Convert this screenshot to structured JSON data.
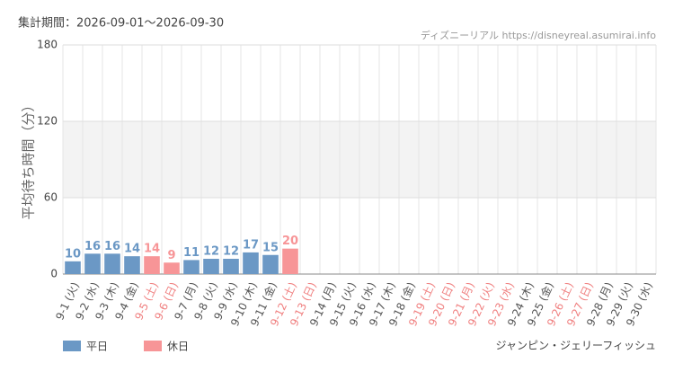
{
  "chart_data": {
    "type": "bar",
    "period": "集計期間：2026-09-01～2026-09-30",
    "source": "ディズニーリアル https://disneyreal.asumirai.info",
    "attraction": "ジャンピン・ジェリーフィッシュ",
    "y_label": "平均待ち時間（分）",
    "categories": [
      "9-1 (火)",
      "9-2 (水)",
      "9-3 (木)",
      "9-4 (金)",
      "9-5 (土)",
      "9-6 (日)",
      "9-7 (月)",
      "9-8 (火)",
      "9-9 (水)",
      "9-10 (木)",
      "9-11 (金)",
      "9-12 (土)",
      "9-13 (日)",
      "9-14 (月)",
      "9-15 (火)",
      "9-16 (水)",
      "9-17 (木)",
      "9-18 (金)",
      "9-19 (土)",
      "9-20 (日)",
      "9-21 (月)",
      "9-22 (火)",
      "9-23 (水)",
      "9-24 (木)",
      "9-25 (金)",
      "9-26 (土)",
      "9-27 (日)",
      "9-28 (月)",
      "9-29 (火)",
      "9-30 (水)"
    ],
    "label_colors": [
      "#555",
      "#555",
      "#555",
      "#555",
      "#f08080",
      "#f08080",
      "#555",
      "#555",
      "#555",
      "#555",
      "#555",
      "#f08080",
      "#f08080",
      "#555",
      "#555",
      "#555",
      "#555",
      "#555",
      "#f08080",
      "#f08080",
      "#f08080",
      "#f08080",
      "#f08080",
      "#555",
      "#555",
      "#f08080",
      "#f08080",
      "#555",
      "#555",
      "#555"
    ],
    "series": [
      {
        "name": "平日",
        "color": "#6b98c5",
        "values": [
          10,
          16,
          16,
          14,
          null,
          null,
          11,
          12,
          12,
          17,
          15,
          null,
          null,
          null,
          null,
          null,
          null,
          null,
          null,
          null,
          null,
          null,
          null,
          null,
          null,
          null,
          null,
          null,
          null,
          null
        ]
      },
      {
        "name": "休日",
        "color": "#f79597",
        "values": [
          null,
          null,
          null,
          null,
          14,
          9,
          null,
          null,
          null,
          null,
          null,
          20,
          null,
          null,
          null,
          null,
          null,
          null,
          null,
          null,
          null,
          null,
          null,
          null,
          null,
          null,
          null,
          null,
          null,
          null
        ]
      }
    ],
    "ylim": [
      0,
      180
    ],
    "yticks": [
      0,
      60,
      120,
      180
    ],
    "grid": true
  }
}
